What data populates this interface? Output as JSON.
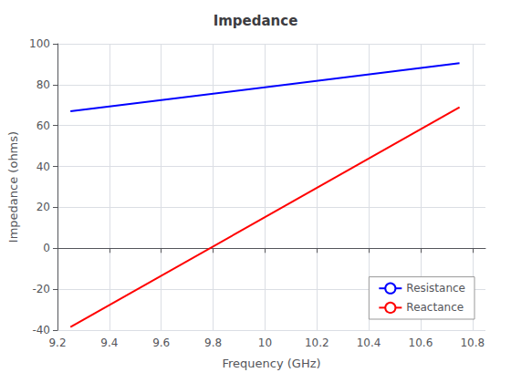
{
  "chart_data": {
    "type": "line",
    "title": "Impedance",
    "x_label": "Frequency (GHz)",
    "y_label": "Impedance (ohms)",
    "x": [
      9.25,
      10.75
    ],
    "series": [
      {
        "name": "Resistance",
        "color": "#0000FF",
        "values": [
          67.0,
          90.5
        ]
      },
      {
        "name": "Reactance",
        "color": "#FF0000",
        "values": [
          -38.5,
          69.0
        ]
      }
    ],
    "xlim": [
      9.2,
      10.85
    ],
    "ylim": [
      -40,
      100
    ],
    "xticks": [
      9.2,
      9.4,
      9.6,
      9.8,
      10.0,
      10.2,
      10.4,
      10.6,
      10.8
    ],
    "yticks": [
      -40,
      -20,
      0,
      20,
      40,
      60,
      80,
      100
    ],
    "grid": true,
    "legend": "lower right"
  }
}
